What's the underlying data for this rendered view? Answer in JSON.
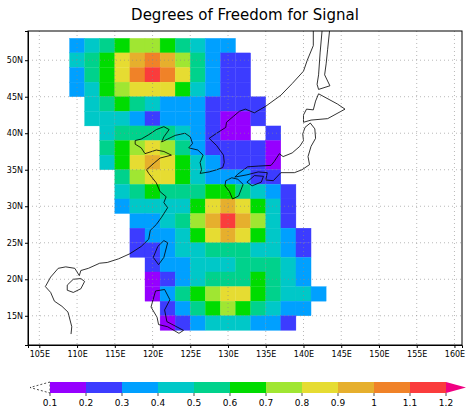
{
  "chart_data": {
    "type": "heatmap",
    "title": "Degrees of Freedom for Signal",
    "x": [
      110,
      112,
      114,
      116,
      118,
      120,
      122,
      124,
      126,
      128,
      130,
      132,
      134,
      136,
      138,
      140,
      142
    ],
    "y": [
      52,
      50,
      48,
      46,
      44,
      42,
      40,
      38,
      36,
      34,
      32,
      30,
      28,
      26,
      24,
      22,
      20,
      18,
      16,
      14
    ],
    "values": [
      [
        0.3,
        0.4,
        0.5,
        0.6,
        0.7,
        0.7,
        0.6,
        0.5,
        0.4,
        0.3,
        0.3,
        null,
        null,
        null,
        null,
        null,
        null
      ],
      [
        0.4,
        0.5,
        0.6,
        0.8,
        0.95,
        1.05,
        0.95,
        0.75,
        0.55,
        0.35,
        0.25,
        0.2,
        null,
        null,
        null,
        null,
        null
      ],
      [
        0.35,
        0.5,
        0.65,
        0.85,
        1.0,
        1.1,
        1.0,
        0.8,
        0.55,
        0.35,
        0.25,
        0.2,
        null,
        null,
        null,
        null,
        null
      ],
      [
        0.3,
        0.45,
        0.6,
        0.75,
        0.85,
        0.85,
        0.8,
        0.6,
        0.4,
        0.3,
        0.25,
        0.2,
        null,
        null,
        null,
        null,
        null
      ],
      [
        null,
        0.45,
        0.55,
        0.6,
        0.55,
        0.45,
        0.35,
        0.3,
        0.3,
        0.25,
        0.2,
        0.2,
        0.2,
        null,
        null,
        null,
        null
      ],
      [
        null,
        0.4,
        0.45,
        0.4,
        0.3,
        0.25,
        0.3,
        0.35,
        0.3,
        0.2,
        0.15,
        0.15,
        0.2,
        null,
        null,
        null,
        null
      ],
      [
        null,
        null,
        0.45,
        0.5,
        0.55,
        0.55,
        0.5,
        0.45,
        0.3,
        0.2,
        0.15,
        0.15,
        null,
        0.2,
        null,
        null,
        null
      ],
      [
        null,
        null,
        0.5,
        0.6,
        0.75,
        0.8,
        0.7,
        0.5,
        0.35,
        0.25,
        0.2,
        0.2,
        0.2,
        0.15,
        null,
        null,
        null
      ],
      [
        null,
        null,
        0.45,
        0.6,
        0.8,
        0.9,
        0.85,
        0.65,
        0.45,
        0.3,
        0.25,
        0.25,
        0.2,
        0.15,
        null,
        null,
        null
      ],
      [
        null,
        null,
        null,
        0.55,
        0.75,
        0.85,
        0.8,
        0.65,
        0.45,
        0.35,
        0.3,
        0.3,
        0.25,
        0.2,
        null,
        null,
        null
      ],
      [
        null,
        null,
        null,
        0.45,
        0.55,
        0.6,
        0.55,
        0.5,
        0.5,
        0.6,
        0.65,
        0.55,
        0.4,
        0.3,
        0.2,
        null,
        null
      ],
      [
        null,
        null,
        null,
        0.35,
        0.4,
        0.45,
        0.45,
        0.45,
        0.6,
        0.8,
        0.95,
        0.85,
        0.6,
        0.4,
        0.25,
        null,
        null
      ],
      [
        null,
        null,
        null,
        null,
        0.3,
        0.35,
        0.4,
        0.5,
        0.7,
        0.95,
        1.1,
        0.95,
        0.7,
        0.45,
        0.25,
        null,
        null
      ],
      [
        null,
        null,
        null,
        null,
        0.25,
        0.3,
        0.35,
        0.45,
        0.6,
        0.8,
        0.9,
        0.8,
        0.6,
        0.4,
        0.3,
        0.2,
        null
      ],
      [
        null,
        null,
        null,
        null,
        0.2,
        0.25,
        0.3,
        0.4,
        0.45,
        0.5,
        0.55,
        0.5,
        0.45,
        0.4,
        0.35,
        0.25,
        null
      ],
      [
        null,
        null,
        null,
        null,
        null,
        0.2,
        0.3,
        0.35,
        0.4,
        0.4,
        0.45,
        0.5,
        0.55,
        0.55,
        0.45,
        0.3,
        null
      ],
      [
        null,
        null,
        null,
        null,
        null,
        0.15,
        0.25,
        0.35,
        0.45,
        0.5,
        0.5,
        0.55,
        0.6,
        0.55,
        0.45,
        0.35,
        null
      ],
      [
        null,
        null,
        null,
        null,
        null,
        0.15,
        0.3,
        0.5,
        0.6,
        0.75,
        0.85,
        0.8,
        0.65,
        0.5,
        0.45,
        0.4,
        0.3
      ],
      [
        null,
        null,
        null,
        null,
        null,
        null,
        0.2,
        0.35,
        0.5,
        0.6,
        0.7,
        0.65,
        0.55,
        0.45,
        0.35,
        0.3,
        null
      ],
      [
        null,
        null,
        null,
        null,
        null,
        null,
        0.15,
        0.25,
        0.35,
        0.4,
        0.45,
        0.4,
        0.35,
        0.3,
        0.25,
        null,
        null
      ]
    ],
    "xlim": [
      103.5,
      161
    ],
    "ylim": [
      11,
      54
    ],
    "xticks": [
      {
        "value": 105,
        "label": "105E"
      },
      {
        "value": 110,
        "label": "110E"
      },
      {
        "value": 115,
        "label": "115E"
      },
      {
        "value": 120,
        "label": "120E"
      },
      {
        "value": 125,
        "label": "125E"
      },
      {
        "value": 130,
        "label": "130E"
      },
      {
        "value": 135,
        "label": "135E"
      },
      {
        "value": 140,
        "label": "140E"
      },
      {
        "value": 145,
        "label": "145E"
      },
      {
        "value": 150,
        "label": "150E"
      },
      {
        "value": 155,
        "label": "155E"
      },
      {
        "value": 160,
        "label": "160E"
      }
    ],
    "yticks": [
      {
        "value": 15,
        "label": "15N"
      },
      {
        "value": 20,
        "label": "20N"
      },
      {
        "value": 25,
        "label": "25N"
      },
      {
        "value": 30,
        "label": "30N"
      },
      {
        "value": 35,
        "label": "35N"
      },
      {
        "value": 40,
        "label": "40N"
      },
      {
        "value": 45,
        "label": "45N"
      },
      {
        "value": 50,
        "label": "50N"
      }
    ],
    "grid": true,
    "colorbar": {
      "range": [
        0.1,
        1.2
      ],
      "ticks": [
        0.1,
        0.2,
        0.3,
        0.4,
        0.5,
        0.6,
        0.7,
        0.8,
        0.9,
        1,
        1.1,
        1.2
      ],
      "colors": [
        "#ffffff",
        "#9600ff",
        "#3c3cff",
        "#00a0ff",
        "#00c8c8",
        "#00d28c",
        "#00dc00",
        "#a0e632",
        "#e6dc32",
        "#e6af2d",
        "#f08228",
        "#fa3c3c",
        "#f00082"
      ]
    }
  }
}
